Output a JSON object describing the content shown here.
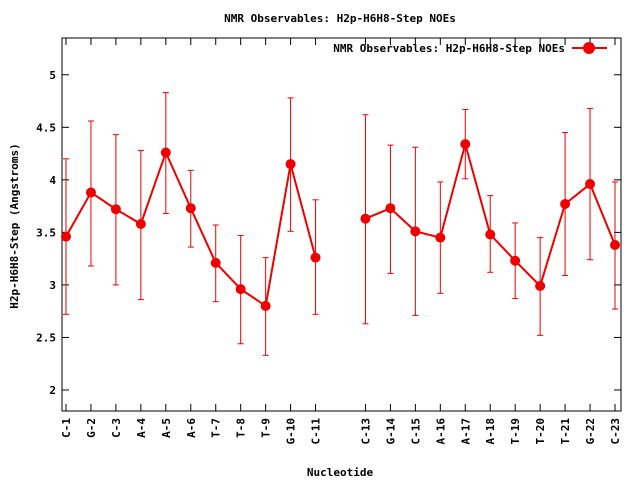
{
  "chart_data": {
    "type": "line",
    "title": "NMR Observables: H2p-H6H8-Step NOEs",
    "xlabel": "Nucleotide",
    "ylabel": "H2p-H6H8-Step (Angstroms)",
    "ylim": [
      1.8,
      5.35
    ],
    "yticks": [
      "2",
      "2.5",
      "3",
      "3.5",
      "4",
      "4.5",
      "5"
    ],
    "grid": false,
    "legend_position": "top-right",
    "series_color": "#ee0000",
    "series": [
      {
        "name": "NMR Observables: H2p-H6H8-Step NOEs",
        "points": [
          {
            "x": "C-1",
            "y": 3.46,
            "lo": 2.72,
            "hi": 4.2
          },
          {
            "x": "G-2",
            "y": 3.88,
            "lo": 3.18,
            "hi": 4.56
          },
          {
            "x": "C-3",
            "y": 3.72,
            "lo": 3.0,
            "hi": 4.43
          },
          {
            "x": "A-4",
            "y": 3.58,
            "lo": 2.86,
            "hi": 4.28
          },
          {
            "x": "A-5",
            "y": 4.26,
            "lo": 3.68,
            "hi": 4.83
          },
          {
            "x": "A-6",
            "y": 3.73,
            "lo": 3.36,
            "hi": 4.09
          },
          {
            "x": "T-7",
            "y": 3.21,
            "lo": 2.84,
            "hi": 3.57
          },
          {
            "x": "T-8",
            "y": 2.96,
            "lo": 2.44,
            "hi": 3.47
          },
          {
            "x": "T-9",
            "y": 2.8,
            "lo": 2.33,
            "hi": 3.26
          },
          {
            "x": "G-10",
            "y": 4.15,
            "lo": 3.51,
            "hi": 4.78
          },
          {
            "x": "C-11",
            "y": 3.26,
            "lo": 2.72,
            "hi": 3.81
          },
          {
            "x": "C-13",
            "y": 3.63,
            "lo": 2.63,
            "hi": 4.62
          },
          {
            "x": "G-14",
            "y": 3.73,
            "lo": 3.11,
            "hi": 4.33
          },
          {
            "x": "C-15",
            "y": 3.51,
            "lo": 2.71,
            "hi": 4.31
          },
          {
            "x": "A-16",
            "y": 3.45,
            "lo": 2.92,
            "hi": 3.98
          },
          {
            "x": "A-17",
            "y": 4.34,
            "lo": 4.01,
            "hi": 4.67
          },
          {
            "x": "A-18",
            "y": 3.48,
            "lo": 3.12,
            "hi": 3.85
          },
          {
            "x": "T-19",
            "y": 3.23,
            "lo": 2.87,
            "hi": 3.59
          },
          {
            "x": "T-20",
            "y": 2.99,
            "lo": 2.52,
            "hi": 3.45
          },
          {
            "x": "T-21",
            "y": 3.77,
            "lo": 3.09,
            "hi": 4.45
          },
          {
            "x": "G-22",
            "y": 3.96,
            "lo": 3.24,
            "hi": 4.68
          },
          {
            "x": "C-23",
            "y": 3.38,
            "lo": 2.77,
            "hi": 3.98
          }
        ]
      }
    ]
  }
}
